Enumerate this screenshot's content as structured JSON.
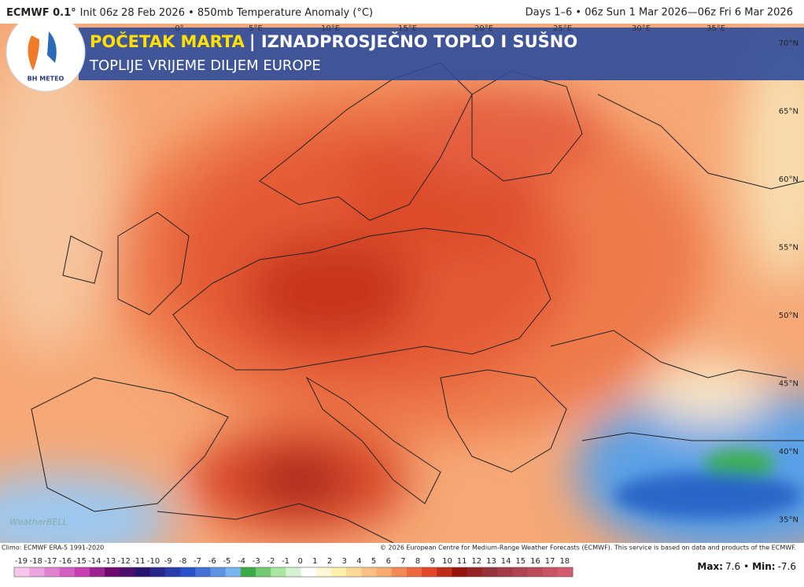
{
  "header": {
    "model": "ECMWF 0.1°",
    "init": "Init 06z 28 Feb 2026 • 850mb Temperature Anomaly (°C)",
    "period": "Days 1–6 • 06z Sun 1 Mar 2026—06z Fri 6 Mar 2026"
  },
  "banner": {
    "logo": "BH METEO",
    "title_highlight": "POČETAK MARTA",
    "title_rest": "| IZNADPROSJEČNO TOPLO I SUŠNO",
    "subtitle": "TOPLIJE VRIJEME DILJEM EUROPE"
  },
  "lon_labels": [
    "0°",
    "5°E",
    "10°E",
    "15°E",
    "20°E",
    "25°E",
    "30°E",
    "35°E"
  ],
  "lat_labels": [
    "70°N",
    "65°N",
    "60°N",
    "55°N",
    "50°N",
    "45°N",
    "40°N",
    "35°N"
  ],
  "watermark": "WeatherBELL",
  "footer": {
    "climo": "Climo: ECMWF ERA-5 1991-2020",
    "copyright": "© 2026 European Centre for Medium-Range Weather Forecasts (ECMWF). This service is based on data and products of the ECMWF."
  },
  "colorbar": {
    "labels": [
      -19,
      -18,
      -17,
      -16,
      -15,
      -14,
      -13,
      -12,
      -11,
      -10,
      -9,
      -8,
      -7,
      -6,
      -5,
      -4,
      -3,
      -2,
      -1,
      0,
      1,
      2,
      3,
      4,
      5,
      6,
      7,
      8,
      9,
      10,
      11,
      12,
      13,
      14,
      15,
      16,
      17,
      18
    ]
  },
  "stats": {
    "max_label": "Max:",
    "max": 7.6,
    "separator": "•",
    "min_label": "Min:",
    "min": -7.6
  }
}
